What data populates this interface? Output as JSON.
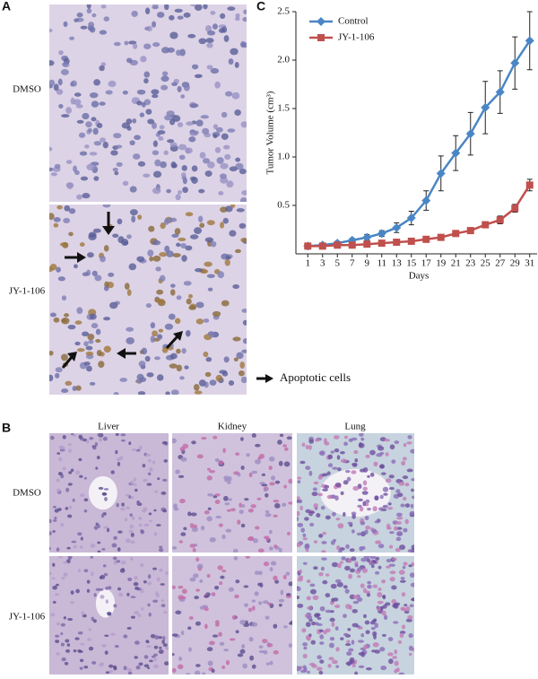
{
  "panel_labels": [
    "A",
    "B",
    "C"
  ],
  "panel_a": {
    "row_labels": [
      "DMSO",
      "JY-1-106"
    ],
    "legend": "Apoptotic cells"
  },
  "panel_b": {
    "column_labels": [
      "Liver",
      "Kidney",
      "Lung"
    ],
    "row_labels": [
      "DMSO",
      "JY-1-106"
    ]
  },
  "chart_data": {
    "type": "line",
    "y_label": "Tumor Volume (cm³)",
    "x_label": "Days",
    "x": [
      1,
      3,
      5,
      7,
      9,
      11,
      13,
      15,
      17,
      19,
      21,
      23,
      25,
      27,
      29,
      31
    ],
    "xlim": [
      0,
      32
    ],
    "xticks": [
      1,
      3,
      5,
      7,
      9,
      11,
      13,
      15,
      17,
      19,
      21,
      23,
      25,
      27,
      29,
      31
    ],
    "ylim": [
      0,
      2.5
    ],
    "yticks": [
      0.5,
      {
        "value": 1,
        "label": "1.0"
      },
      1.5,
      {
        "value": 2,
        "label": "2.0"
      },
      2.5
    ],
    "legend": "upper left",
    "series": [
      {
        "name": "Control",
        "color": "#4a86c5",
        "marker": "diamond",
        "values": [
          0.08,
          0.09,
          0.11,
          0.14,
          0.17,
          0.21,
          0.27,
          0.37,
          0.55,
          0.83,
          1.04,
          1.24,
          1.51,
          1.67,
          1.97,
          2.2
        ],
        "errors": [
          0.005,
          0.01,
          0.02,
          0.02,
          0.03,
          0.03,
          0.05,
          0.07,
          0.1,
          0.18,
          0.18,
          0.22,
          0.27,
          0.22,
          0.27,
          0.3
        ]
      },
      {
        "name": "JY-1-106",
        "color": "#c0504d",
        "marker": "square",
        "values": [
          0.08,
          0.08,
          0.09,
          0.09,
          0.1,
          0.11,
          0.12,
          0.13,
          0.15,
          0.17,
          0.21,
          0.24,
          0.3,
          0.35,
          0.47,
          0.71
        ],
        "errors": [
          0,
          0,
          0,
          0,
          0,
          0,
          0.01,
          0.01,
          0.01,
          0.01,
          0.02,
          0.02,
          0.03,
          0.04,
          0.04,
          0.06
        ]
      }
    ]
  }
}
